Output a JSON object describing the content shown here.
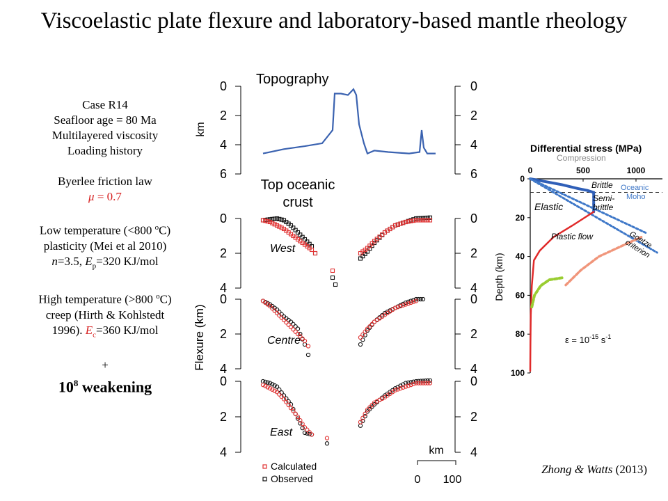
{
  "title": "Viscoelastic plate flexure and laboratory-based mantle rheology",
  "info": {
    "case": "Case R14",
    "seafloor_age": "Seafloor age = 80 Ma",
    "viscosity": "Multilayered viscosity",
    "loading": "Loading history",
    "friction_law": "Byerlee friction law",
    "mu_symbol": "μ",
    "mu_value": " = 0.7",
    "lowT_1": "Low temperature (<800 ",
    "lowT_deg": "o",
    "lowT_1b": "C)",
    "lowT_2": "plasticity (Mei et al 2010)",
    "lowT_n": "n",
    "lowT_3a": "=3.5,  ",
    "lowT_E": "E",
    "lowT_Esub": "p",
    "lowT_3b": "=320 KJ/mol",
    "highT_1": "High temperature (>800 ",
    "highT_deg": "o",
    "highT_1b": "C)",
    "highT_2": "creep (Hirth & Kohlstedt",
    "highT_3a": "1996). ",
    "highT_E": "E",
    "highT_Esub": "c",
    "highT_3b": "=360 KJ/mol",
    "plus": "+",
    "weak_base": "10",
    "weak_exp": "8",
    "weak_text": " weakening"
  },
  "credit": {
    "names": "Zhong & Watts",
    "year": " (2013)"
  },
  "colors": {
    "topography": "#3a62b0",
    "calculated": "#e03030",
    "observed": "#111111",
    "brittle": "#2f5fb8",
    "goetze": "#3f78c8",
    "plastic": "#e02a2a",
    "orange": "#f0957a",
    "green": "#9acd32",
    "compression": "#888888"
  },
  "chart_data": [
    {
      "type": "line",
      "title": "Topography",
      "ylabel": "km",
      "ylim": [
        6,
        0
      ],
      "yticks": [
        "0",
        "2",
        "4",
        "6"
      ],
      "series": [
        {
          "values": [
            [
              0,
              4.6
            ],
            [
              30,
              4.3
            ],
            [
              60,
              4.1
            ],
            [
              85,
              3.9
            ],
            [
              100,
              3.0
            ],
            [
              103,
              0.5
            ],
            [
              112,
              0.5
            ],
            [
              122,
              0.6
            ],
            [
              130,
              0.2
            ],
            [
              134,
              0.6
            ],
            [
              138,
              2.6
            ],
            [
              145,
              3.9
            ],
            [
              150,
              4.6
            ],
            [
              160,
              4.4
            ],
            [
              180,
              4.5
            ],
            [
              210,
              4.6
            ],
            [
              225,
              4.5
            ],
            [
              228,
              3.0
            ],
            [
              231,
              4.2
            ],
            [
              236,
              4.6
            ],
            [
              248,
              4.6
            ]
          ]
        }
      ]
    },
    {
      "type": "scatter",
      "title": "Top oceanic crust",
      "panel_labels": [
        "West",
        "Centre",
        "East"
      ],
      "ylabel": "Flexure (km)",
      "ylim": [
        4,
        0
      ],
      "yticks": [
        "0",
        "2",
        "4"
      ],
      "legend": [
        "Calculated",
        "Observed"
      ],
      "scalebar": {
        "label": "km",
        "ticks": [
          "0",
          "100"
        ]
      },
      "panels": [
        {
          "name": "West",
          "calculated": [
            [
              0,
              0.1
            ],
            [
              10,
              0.2
            ],
            [
              20,
              0.4
            ],
            [
              30,
              0.6
            ],
            [
              40,
              0.9
            ],
            [
              50,
              1.2
            ],
            [
              60,
              1.5
            ],
            [
              70,
              1.8
            ],
            [
              75,
              2.0
            ]
          ],
          "observed": [
            [
              0,
              0.1
            ],
            [
              10,
              0.05
            ],
            [
              20,
              0.0
            ],
            [
              30,
              0.1
            ],
            [
              40,
              0.4
            ],
            [
              50,
              0.8
            ],
            [
              60,
              1.2
            ],
            [
              70,
              1.6
            ],
            [
              75,
              2.0
            ]
          ],
          "gap_calculated": [
            [
              100,
              3.0
            ]
          ],
          "gap_observed": [
            [
              100,
              3.4
            ],
            [
              104,
              3.8
            ]
          ],
          "right_calculated": [
            [
              140,
              2.0
            ],
            [
              150,
              1.7
            ],
            [
              160,
              1.3
            ],
            [
              175,
              0.8
            ],
            [
              190,
              0.4
            ],
            [
              205,
              0.2
            ],
            [
              220,
              0.1
            ],
            [
              240,
              0.1
            ]
          ],
          "right_observed": [
            [
              140,
              2.3
            ],
            [
              150,
              1.9
            ],
            [
              160,
              1.4
            ],
            [
              175,
              0.8
            ],
            [
              190,
              0.4
            ],
            [
              205,
              0.2
            ],
            [
              220,
              0.0
            ],
            [
              240,
              -0.05
            ]
          ]
        },
        {
          "name": "Centre",
          "calculated": [
            [
              0,
              0.1
            ],
            [
              10,
              0.4
            ],
            [
              20,
              0.8
            ],
            [
              30,
              1.2
            ],
            [
              40,
              1.6
            ],
            [
              50,
              2.0
            ],
            [
              60,
              2.4
            ],
            [
              65,
              2.7
            ]
          ],
          "observed": [
            [
              0,
              0.1
            ],
            [
              10,
              0.3
            ],
            [
              20,
              0.6
            ],
            [
              30,
              1.0
            ],
            [
              40,
              1.3
            ],
            [
              50,
              1.7
            ],
            [
              60,
              2.6
            ],
            [
              65,
              3.2
            ]
          ],
          "right_calculated": [
            [
              140,
              2.2
            ],
            [
              150,
              1.7
            ],
            [
              160,
              1.3
            ],
            [
              175,
              0.9
            ],
            [
              190,
              0.5
            ],
            [
              205,
              0.3
            ],
            [
              220,
              0.1
            ]
          ],
          "right_observed": [
            [
              140,
              2.6
            ],
            [
              150,
              1.8
            ],
            [
              160,
              1.3
            ],
            [
              175,
              0.8
            ],
            [
              190,
              0.5
            ],
            [
              205,
              0.2
            ],
            [
              220,
              0.0
            ],
            [
              230,
              0.0
            ]
          ]
        },
        {
          "name": "East",
          "calculated": [
            [
              0,
              0.2
            ],
            [
              10,
              0.4
            ],
            [
              20,
              0.6
            ],
            [
              30,
              1.0
            ],
            [
              40,
              1.5
            ],
            [
              50,
              2.0
            ],
            [
              60,
              2.6
            ],
            [
              70,
              3.0
            ]
          ],
          "observed": [
            [
              0,
              0.0
            ],
            [
              10,
              0.1
            ],
            [
              20,
              0.3
            ],
            [
              30,
              0.8
            ],
            [
              40,
              1.3
            ],
            [
              50,
              2.1
            ],
            [
              60,
              2.9
            ],
            [
              70,
              3.0
            ]
          ],
          "gap_calculated": [
            [
              92,
              3.2
            ]
          ],
          "gap_observed": [
            [
              92,
              3.5
            ]
          ],
          "right_calculated": [
            [
              140,
              2.3
            ],
            [
              150,
              1.6
            ],
            [
              160,
              1.2
            ],
            [
              175,
              0.9
            ],
            [
              190,
              0.5
            ],
            [
              205,
              0.3
            ],
            [
              220,
              0.1
            ],
            [
              240,
              0.1
            ]
          ],
          "right_observed": [
            [
              140,
              2.5
            ],
            [
              150,
              1.7
            ],
            [
              160,
              1.3
            ],
            [
              175,
              0.8
            ],
            [
              190,
              0.4
            ],
            [
              205,
              0.1
            ],
            [
              220,
              0.0
            ],
            [
              240,
              -0.05
            ]
          ]
        }
      ]
    },
    {
      "type": "line",
      "title": "Differential stress (MPa)",
      "xlabel_sub": "Compression",
      "ylabel": "Depth (km)",
      "xlim": [
        0,
        1250
      ],
      "xticks": [
        0,
        500,
        1000
      ],
      "ylim": [
        0,
        100
      ],
      "yticks": [
        0,
        20,
        40,
        60,
        80,
        100
      ],
      "moho_depth": 7,
      "annotations": [
        "Brittle",
        "Oceanic",
        "Moho",
        "Semi-",
        "brittle",
        "Elastic",
        "Plastic flow",
        "Goetze",
        "criterion",
        "ε = 10",
        "-15",
        " s",
        "-1"
      ],
      "series": [
        {
          "name": "Brittle",
          "values": [
            [
              0,
              0
            ],
            [
              300,
              3
            ],
            [
              450,
              5
            ],
            [
              540,
              6
            ],
            [
              600,
              7
            ]
          ]
        },
        {
          "name": "Semi-brittle",
          "values": [
            [
              600,
              7
            ],
            [
              600,
              17
            ]
          ]
        },
        {
          "name": "Byerlee",
          "values": [
            [
              0,
              0
            ],
            [
              1100,
              28
            ]
          ]
        },
        {
          "name": "Goetze",
          "values": [
            [
              0,
              0
            ],
            [
              1200,
              38
            ]
          ]
        },
        {
          "name": "Plastic flow",
          "values": [
            [
              600,
              17
            ],
            [
              400,
              24
            ],
            [
              220,
              30
            ],
            [
              90,
              37
            ],
            [
              35,
              42
            ],
            [
              15,
              55
            ],
            [
              5,
              70
            ],
            [
              2,
              85
            ],
            [
              0,
              99
            ]
          ]
        },
        {
          "name": "Orange",
          "values": [
            [
              1050,
              30
            ],
            [
              850,
              35
            ],
            [
              650,
              40
            ],
            [
              480,
              47
            ],
            [
              330,
              55
            ]
          ]
        },
        {
          "name": "Green",
          "values": [
            [
              300,
              51
            ],
            [
              180,
              52
            ],
            [
              100,
              55
            ],
            [
              40,
              60
            ],
            [
              15,
              66
            ]
          ]
        }
      ]
    }
  ]
}
